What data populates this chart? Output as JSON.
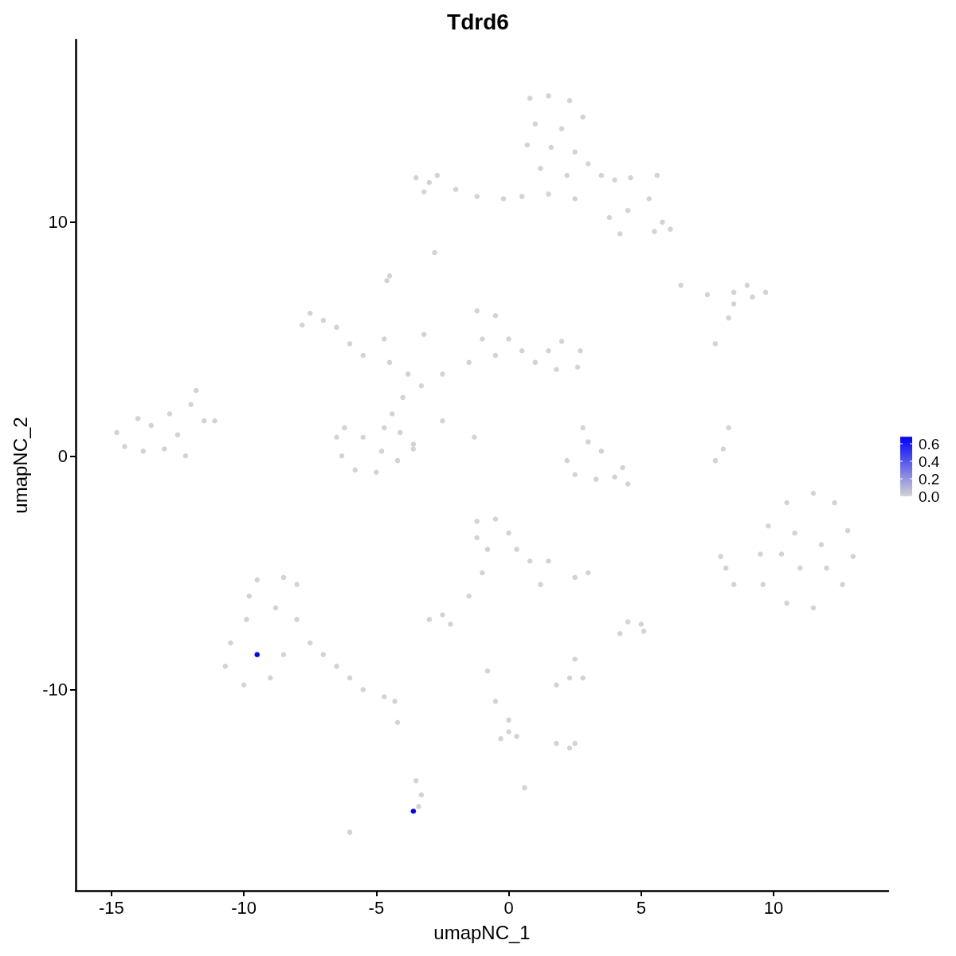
{
  "chart_data": {
    "type": "scatter",
    "title": "Tdrd6",
    "xlabel": "umapNC_1",
    "ylabel": "umapNC_2",
    "xlim": [
      -16.35,
      14.33
    ],
    "ylim": [
      -18.6,
      17.8
    ],
    "xticks": [
      -15,
      -10,
      -5,
      0,
      5,
      10
    ],
    "yticks": [
      -10,
      0,
      10
    ],
    "grid": false,
    "marker": "circle",
    "clim": [
      0,
      0.68
    ],
    "cticks": [
      {
        "value": 0,
        "label": "0.0"
      },
      {
        "value": 0.2,
        "label": "0.2"
      },
      {
        "value": 0.4,
        "label": "0.4"
      },
      {
        "value": 0.6,
        "label": "0.6"
      }
    ],
    "x": [
      0.8,
      1.5,
      2.3,
      2.8,
      1.0,
      2.0,
      0.7,
      1.6,
      2.5,
      1.2,
      2.2,
      3.0,
      3.5,
      4.0,
      4.6,
      5.6,
      5.3,
      4.5,
      5.8,
      5.5,
      6.1,
      3.8,
      4.2,
      2.5,
      1.5,
      0.5,
      -0.2,
      -1.2,
      -2.0,
      -3.2,
      -3.5,
      -2.7,
      -3.0,
      -2.8,
      -4.6,
      -4.5,
      6.5,
      7.5,
      8.5,
      9.0,
      9.7,
      9.2,
      8.5,
      8.3,
      7.8,
      -7.5,
      -7.8,
      -7.0,
      -6.5,
      -6.0,
      -5.5,
      -4.5,
      -3.8,
      -3.3,
      -4.0,
      -4.4,
      -4.1,
      -3.6,
      -6.2,
      -6.5,
      -6.3,
      -5.8,
      -5.0,
      -4.2,
      -3.6,
      -5.5,
      -4.7,
      -4.8,
      -2.5,
      -1.5,
      -1.0,
      -1.2,
      -0.5,
      0.0,
      0.5,
      1.5,
      2.0,
      2.7,
      2.6,
      1.8,
      1.0,
      -0.5,
      -3.2,
      -4.7,
      -2.5,
      -1.3,
      -14.8,
      -14.5,
      -13.8,
      -13.0,
      -12.2,
      -13.5,
      -12.8,
      -12.0,
      -11.8,
      -11.5,
      -11.1,
      -14.0,
      -12.5,
      2.8,
      3.0,
      3.5,
      2.2,
      2.5,
      3.3,
      4.0,
      4.3,
      4.5,
      8.3,
      8.1,
      7.8,
      11.5,
      10.5,
      12.3,
      9.8,
      12.8,
      9.5,
      13.0,
      9.6,
      12.6,
      10.5,
      11.5,
      10.8,
      11.8,
      11.0,
      12.0,
      10.3,
      8.0,
      8.5,
      8.2,
      -1.2,
      -0.5,
      0.0,
      0.3,
      -0.8,
      -1.2,
      0.8,
      1.2,
      -1.0,
      -1.5,
      -2.5,
      -3.0,
      -2.2,
      2.5,
      3.0,
      1.5,
      5.0,
      5.1,
      4.5,
      4.2,
      2.5,
      2.3,
      1.8,
      2.8,
      -0.8,
      -0.5,
      0.0,
      0.0,
      -0.3,
      0.3,
      1.8,
      2.3,
      2.5,
      0.6,
      -9.5,
      -8.5,
      -8.0,
      -9.8,
      -9.9,
      -10.5,
      -10.7,
      -10.0,
      -9.0,
      -8.5,
      -8.8,
      -8.0,
      -7.5,
      -7.0,
      -6.5,
      -6.0,
      -5.5,
      -4.7,
      -4.3,
      -4.2,
      -3.5,
      -3.3,
      -3.4,
      -6.0,
      -9.5,
      -3.6
    ],
    "values": [
      15.3,
      15.4,
      15.2,
      14.5,
      14.2,
      14.0,
      13.3,
      13.2,
      13.0,
      12.3,
      12.0,
      12.5,
      12.0,
      11.8,
      11.9,
      12.0,
      11.0,
      10.5,
      10.0,
      9.6,
      9.7,
      10.2,
      9.5,
      11.0,
      11.2,
      11.1,
      11.0,
      11.1,
      11.4,
      11.3,
      11.9,
      12.0,
      11.7,
      8.7,
      7.5,
      7.7,
      7.3,
      6.9,
      7.0,
      7.3,
      7.0,
      6.8,
      6.5,
      5.9,
      4.8,
      6.1,
      5.6,
      5.8,
      5.5,
      4.8,
      4.3,
      4.0,
      3.5,
      3.0,
      2.5,
      1.8,
      1.0,
      0.5,
      1.2,
      0.8,
      0.0,
      -0.6,
      -0.7,
      -0.2,
      0.3,
      0.8,
      1.2,
      0.2,
      3.5,
      4.0,
      5.0,
      6.2,
      6.0,
      5.0,
      4.5,
      4.5,
      4.9,
      4.5,
      3.8,
      3.7,
      4.0,
      4.3,
      5.2,
      5.0,
      1.5,
      0.8,
      1.0,
      0.4,
      0.2,
      0.3,
      0.0,
      1.3,
      1.8,
      2.2,
      2.8,
      1.5,
      1.5,
      1.6,
      0.9,
      1.2,
      0.6,
      0.2,
      -0.2,
      -0.8,
      -1.0,
      -0.9,
      -0.5,
      -1.2,
      1.2,
      0.3,
      -0.2,
      -1.6,
      -2.0,
      -2.0,
      -3.0,
      -3.2,
      -4.2,
      -4.3,
      -5.5,
      -5.5,
      -6.3,
      -6.5,
      -3.3,
      -3.8,
      -4.8,
      -4.8,
      -4.2,
      -4.3,
      -5.5,
      -4.8,
      -2.8,
      -2.7,
      -3.3,
      -4.0,
      -4.0,
      -3.5,
      -4.5,
      -5.5,
      -5.0,
      -6.0,
      -6.8,
      -7.0,
      -7.2,
      -5.2,
      -5.0,
      -4.5,
      -7.2,
      -7.5,
      -7.1,
      -7.6,
      -8.7,
      -9.5,
      -9.8,
      -9.5,
      -9.2,
      -10.5,
      -11.3,
      -11.8,
      -12.1,
      -12.0,
      -12.3,
      -12.5,
      -12.3,
      -14.2,
      -5.3,
      -5.2,
      -5.5,
      -6.0,
      -7.0,
      -8.0,
      -9.0,
      -9.8,
      -9.5,
      -8.5,
      -6.5,
      -7.0,
      -8.0,
      -8.5,
      -9.0,
      -9.5,
      -10.0,
      -10.3,
      -10.5,
      -11.4,
      -13.9,
      -14.5,
      -15.0,
      -16.1,
      -8.5,
      -15.2
    ],
    "cvalues": [
      0,
      0,
      0,
      0,
      0,
      0,
      0,
      0,
      0,
      0,
      0,
      0,
      0,
      0,
      0,
      0,
      0,
      0,
      0,
      0,
      0,
      0,
      0,
      0,
      0,
      0,
      0,
      0,
      0,
      0,
      0,
      0,
      0,
      0,
      0,
      0,
      0,
      0,
      0,
      0,
      0,
      0,
      0,
      0,
      0,
      0,
      0,
      0,
      0,
      0,
      0,
      0,
      0,
      0,
      0,
      0,
      0,
      0,
      0,
      0,
      0,
      0,
      0,
      0,
      0,
      0,
      0,
      0,
      0,
      0,
      0,
      0,
      0,
      0,
      0,
      0,
      0,
      0,
      0,
      0,
      0,
      0,
      0,
      0,
      0,
      0,
      0,
      0,
      0,
      0,
      0,
      0,
      0,
      0,
      0,
      0,
      0,
      0,
      0,
      0,
      0,
      0,
      0,
      0,
      0,
      0,
      0,
      0,
      0,
      0,
      0,
      0,
      0,
      0,
      0,
      0,
      0,
      0,
      0,
      0,
      0,
      0,
      0,
      0,
      0,
      0,
      0,
      0,
      0,
      0,
      0,
      0,
      0,
      0,
      0,
      0,
      0,
      0,
      0,
      0,
      0,
      0,
      0,
      0,
      0,
      0,
      0,
      0,
      0,
      0,
      0,
      0,
      0,
      0,
      0,
      0,
      0,
      0,
      0,
      0,
      0,
      0,
      0,
      0,
      0,
      0,
      0,
      0,
      0,
      0,
      0,
      0,
      0,
      0,
      0,
      0,
      0,
      0,
      0,
      0,
      0,
      0,
      0,
      0,
      0,
      0,
      0,
      0,
      0.68,
      0.68
    ]
  }
}
